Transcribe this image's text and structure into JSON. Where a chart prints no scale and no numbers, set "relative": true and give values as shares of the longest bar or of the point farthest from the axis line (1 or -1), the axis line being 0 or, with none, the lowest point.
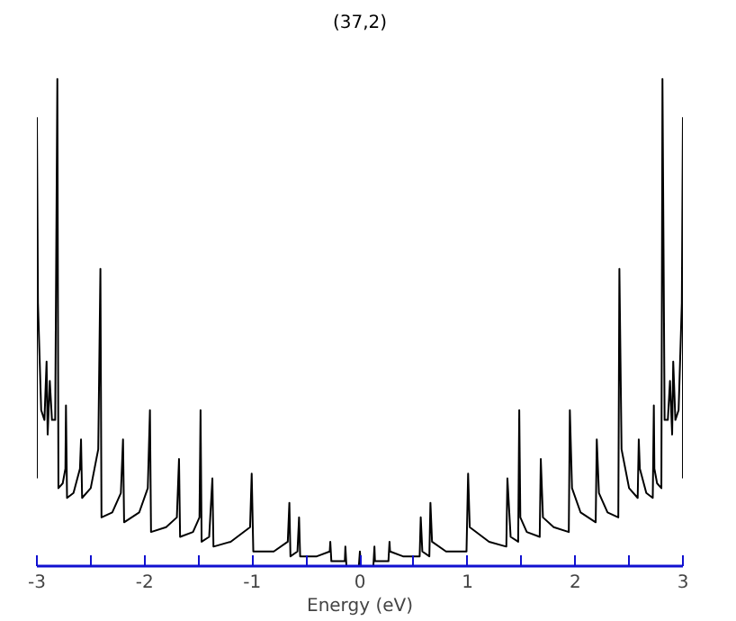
{
  "chart_data": {
    "type": "line",
    "title": "(37,2)",
    "xlabel": "Energy (eV)",
    "relative": true,
    "xlim": [
      -3,
      3
    ],
    "xticks": [
      -3,
      {
        "value": -2.5,
        "label": null
      },
      -2,
      {
        "value": -1.5,
        "label": null
      },
      -1,
      {
        "value": -0.5,
        "label": null
      },
      0,
      {
        "value": 0.5,
        "label": null
      },
      1,
      {
        "value": 1.5,
        "label": null
      },
      2,
      {
        "value": 2.5,
        "label": null
      },
      3
    ],
    "tick_labels": "x",
    "grid": false,
    "marker": "none",
    "line_style": "solid",
    "series": [
      {
        "color": "#000000",
        "x": [
          -3.0,
          -3.0,
          -2.99,
          -2.96,
          -2.93,
          -2.91,
          -2.9,
          -2.88,
          -2.86,
          -2.83,
          -2.81,
          -2.8,
          -2.76,
          -2.735,
          -2.73,
          -2.72,
          -2.66,
          -2.6,
          -2.59,
          -2.58,
          -2.5,
          -2.43,
          -2.41,
          -2.4,
          -2.3,
          -2.22,
          -2.2,
          -2.19,
          -2.05,
          -1.97,
          -1.95,
          -1.94,
          -1.8,
          -1.7,
          -1.68,
          -1.67,
          -1.55,
          -1.49,
          -1.48,
          -1.47,
          -1.4,
          -1.37,
          -1.36,
          -1.2,
          -1.02,
          -1.005,
          -0.99,
          -0.8,
          -0.67,
          -0.655,
          -0.645,
          -0.58,
          -0.565,
          -0.555,
          -0.4,
          -0.28,
          -0.275,
          -0.265,
          -0.14,
          -0.135,
          -0.125,
          -0.01,
          0.0,
          0.01,
          0.125,
          0.135,
          0.14,
          0.265,
          0.275,
          0.28,
          0.4,
          0.555,
          0.565,
          0.58,
          0.645,
          0.655,
          0.67,
          0.8,
          0.99,
          1.005,
          1.02,
          1.2,
          1.36,
          1.37,
          1.4,
          1.47,
          1.48,
          1.49,
          1.55,
          1.67,
          1.68,
          1.7,
          1.8,
          1.94,
          1.95,
          1.97,
          2.05,
          2.19,
          2.2,
          2.22,
          2.3,
          2.4,
          2.41,
          2.43,
          2.5,
          2.58,
          2.59,
          2.6,
          2.66,
          2.72,
          2.73,
          2.735,
          2.76,
          2.8,
          2.81,
          2.83,
          2.86,
          2.88,
          2.9,
          2.91,
          2.93,
          2.96,
          2.99,
          3.0,
          3.0
        ],
        "values": [
          0.18,
          0.92,
          0.54,
          0.32,
          0.3,
          0.42,
          0.27,
          0.38,
          0.3,
          0.3,
          1.0,
          0.16,
          0.17,
          0.2,
          0.33,
          0.14,
          0.15,
          0.2,
          0.26,
          0.14,
          0.16,
          0.24,
          0.61,
          0.1,
          0.11,
          0.15,
          0.26,
          0.09,
          0.11,
          0.16,
          0.32,
          0.07,
          0.08,
          0.1,
          0.22,
          0.06,
          0.07,
          0.1,
          0.32,
          0.05,
          0.06,
          0.18,
          0.04,
          0.05,
          0.08,
          0.19,
          0.03,
          0.03,
          0.05,
          0.13,
          0.02,
          0.03,
          0.1,
          0.02,
          0.02,
          0.03,
          0.05,
          0.01,
          0.01,
          0.04,
          0.0,
          0.0,
          0.03,
          0.0,
          0.0,
          0.04,
          0.01,
          0.01,
          0.05,
          0.03,
          0.02,
          0.02,
          0.1,
          0.03,
          0.02,
          0.13,
          0.05,
          0.03,
          0.03,
          0.19,
          0.08,
          0.05,
          0.04,
          0.18,
          0.06,
          0.05,
          0.32,
          0.1,
          0.07,
          0.06,
          0.22,
          0.1,
          0.08,
          0.07,
          0.32,
          0.16,
          0.11,
          0.09,
          0.26,
          0.15,
          0.11,
          0.1,
          0.61,
          0.24,
          0.16,
          0.14,
          0.26,
          0.2,
          0.15,
          0.14,
          0.33,
          0.2,
          0.17,
          0.16,
          1.0,
          0.3,
          0.3,
          0.38,
          0.27,
          0.42,
          0.3,
          0.32,
          0.54,
          0.92,
          0.18
        ]
      }
    ]
  }
}
